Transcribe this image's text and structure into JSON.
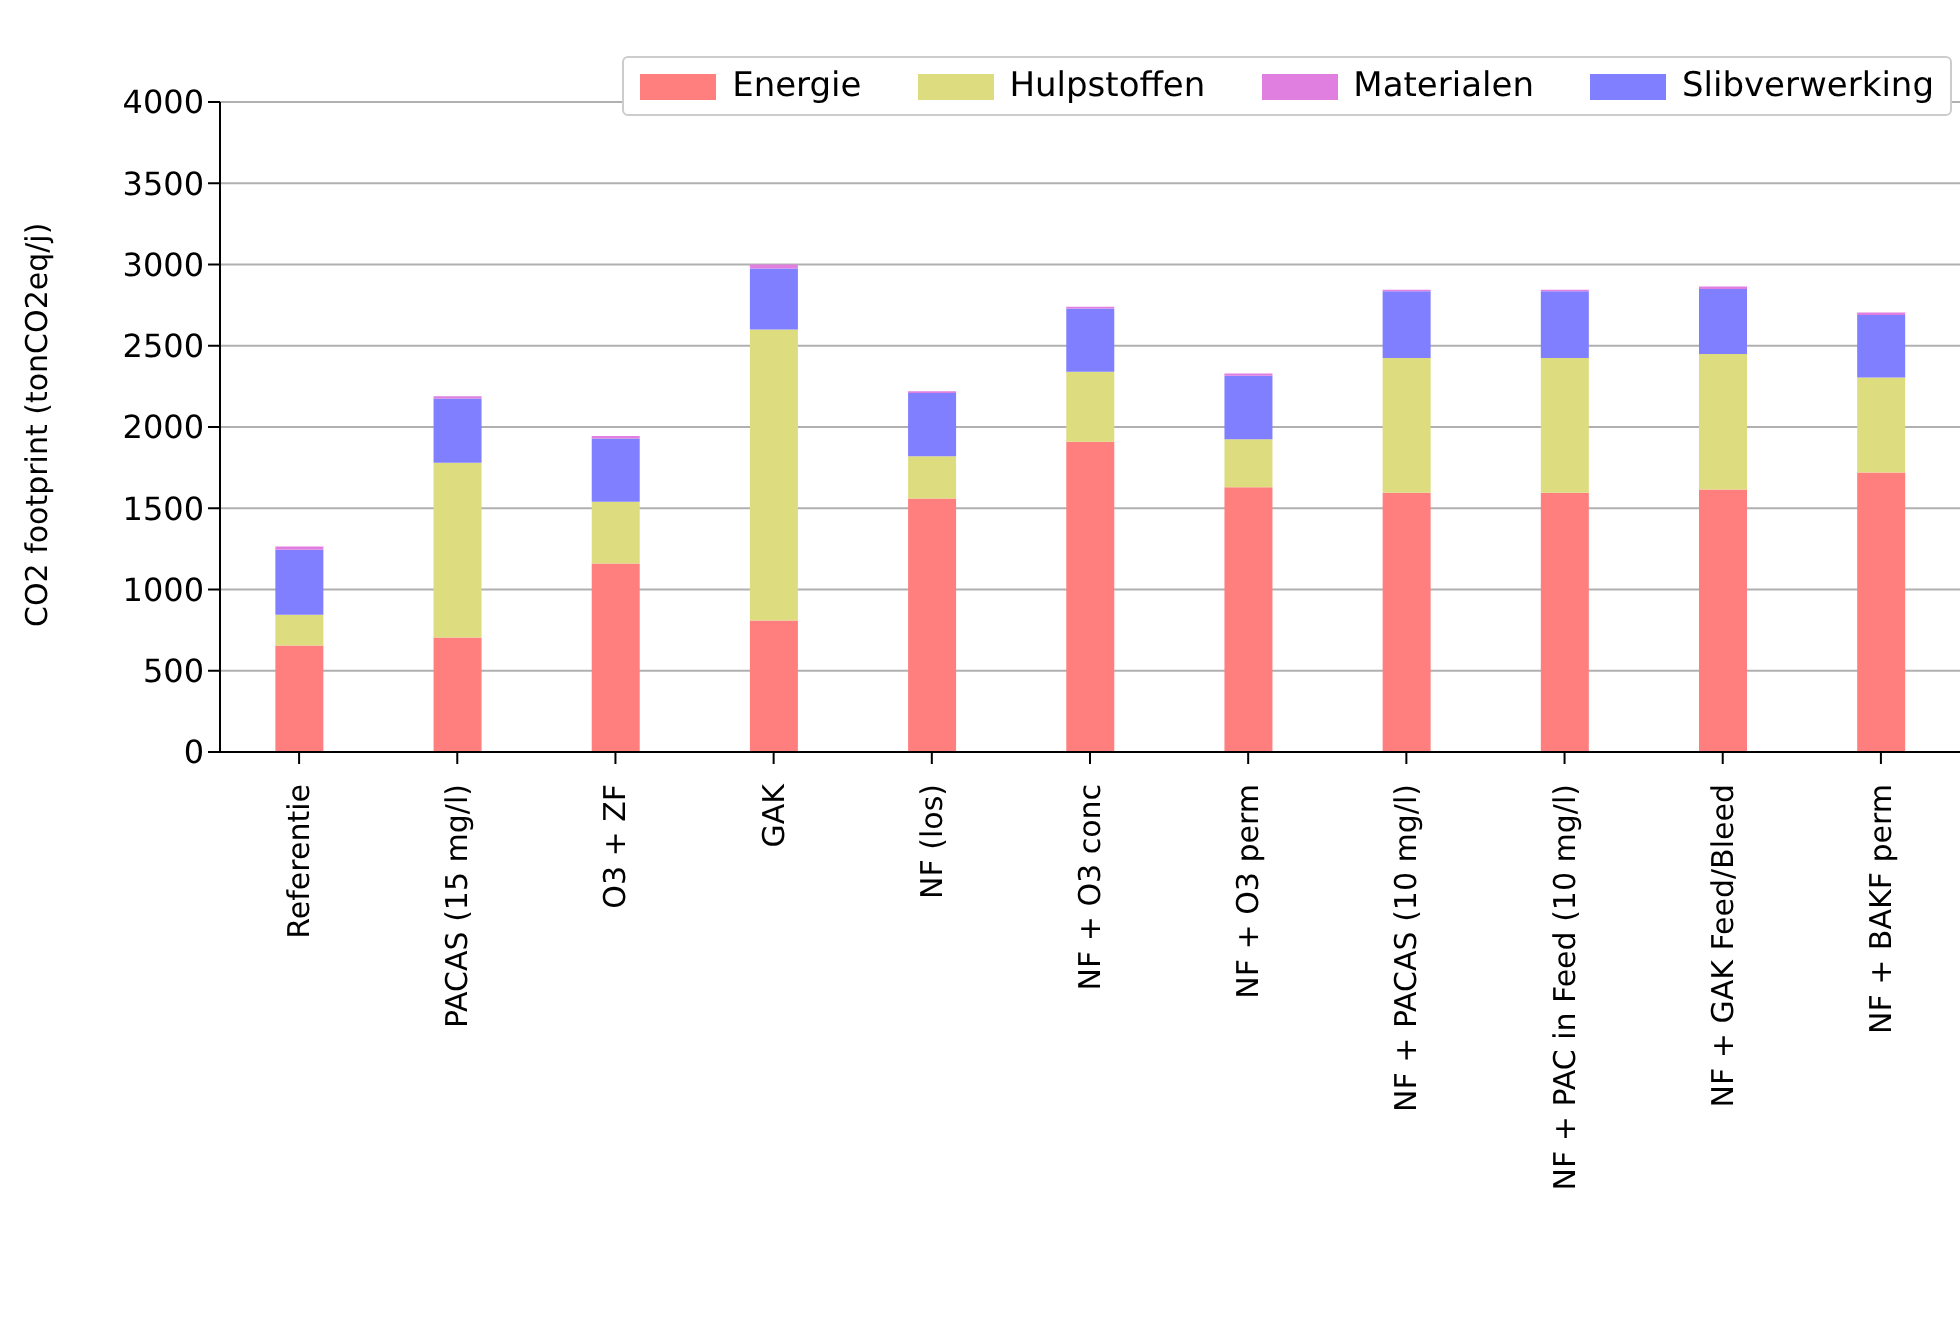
{
  "chart_data": {
    "type": "bar",
    "stacked": true,
    "ylabel": "CO2 footprint (tonCO2eq/j)",
    "categories": [
      "Referentie",
      "PACAS (15 mg/l)",
      "O3 + ZF",
      "GAK",
      "NF (los)",
      "NF + O3 conc",
      "NF + O3 perm",
      "NF + PACAS (10 mg/l)",
      "NF + PAC in Feed (10 mg/l)",
      "NF + GAK Feed/Bleed",
      "NF + BAKF perm"
    ],
    "series": [
      {
        "name": "Energie",
        "color": "#ff7f7f",
        "values": [
          655,
          705,
          1160,
          810,
          1560,
          1910,
          1630,
          1595,
          1595,
          1615,
          1720
        ]
      },
      {
        "name": "Hulpstoffen",
        "color": "#dddc7f",
        "values": [
          190,
          1075,
          380,
          1790,
          260,
          430,
          295,
          830,
          830,
          835,
          585
        ]
      },
      {
        "name": "Slibverwerking",
        "color": "#7f7fff",
        "values": [
          400,
          395,
          390,
          375,
          390,
          390,
          390,
          410,
          410,
          400,
          385
        ]
      },
      {
        "name": "Materialen",
        "color": "#e07fe0",
        "values": [
          20,
          15,
          15,
          25,
          10,
          10,
          15,
          10,
          10,
          15,
          15
        ]
      }
    ],
    "ylim": [
      0,
      4000
    ],
    "yticks": [
      0,
      500,
      1000,
      1500,
      2000,
      2500,
      3000,
      3500,
      4000
    ],
    "grid": "y",
    "legend": "top right"
  }
}
